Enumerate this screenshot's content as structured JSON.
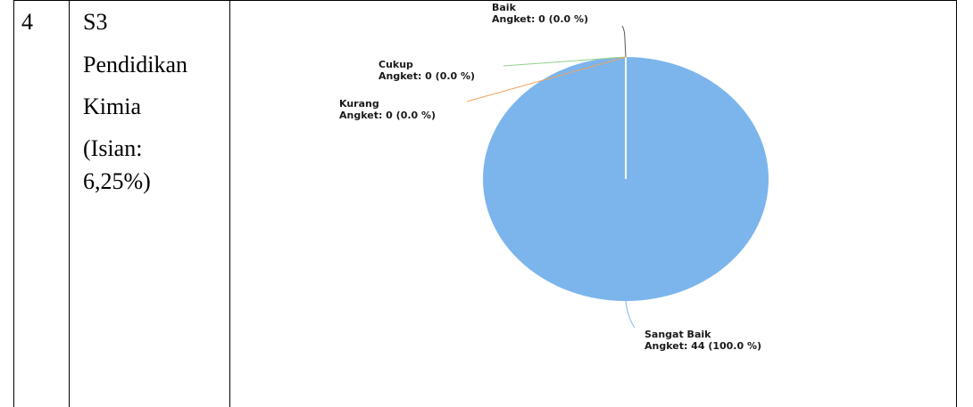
{
  "table": {
    "row_number": "4",
    "program_lines": [
      "S3",
      "Pendidikan",
      "Kimia",
      "(Isian:",
      "6,25%)"
    ]
  },
  "chart_data": {
    "type": "pie",
    "slices": [
      {
        "name": "Baik",
        "label_line2": "Angket: 0 (0.0 %)",
        "value": 0,
        "percent": 0.0,
        "color": "#555555"
      },
      {
        "name": "Cukup",
        "label_line2": "Angket: 0 (0.0 %)",
        "value": 0,
        "percent": 0.0,
        "color": "#8fd18c"
      },
      {
        "name": "Kurang",
        "label_line2": "Angket: 0 (0.0 %)",
        "value": 0,
        "percent": 0.0,
        "color": "#f2a25c"
      },
      {
        "name": "Sangat Baik",
        "label_line2": "Angket: 44 (100.0 %)",
        "value": 44,
        "percent": 100.0,
        "color": "#7cb5ec"
      }
    ]
  },
  "colors": {
    "pie_fill": "#7cb5ec",
    "border": "#000000"
  }
}
